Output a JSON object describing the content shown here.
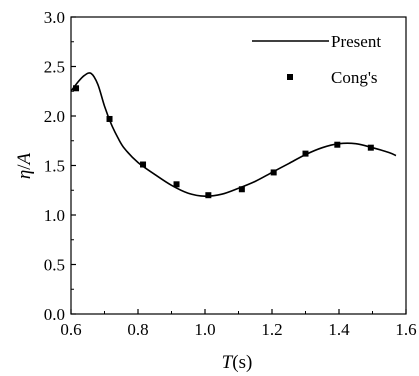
{
  "chart_data": {
    "type": "line",
    "title": "",
    "xlabel": {
      "var": "T",
      "unit": "(s)"
    },
    "ylabel": {
      "var": "η",
      "sep": "/",
      "var2": "A"
    },
    "xlim": [
      0.6,
      1.6
    ],
    "ylim": [
      0.0,
      3.0
    ],
    "xticks": [
      "0.6",
      "0.8",
      "1.0",
      "1.2",
      "1.4",
      "1.6"
    ],
    "yticks": [
      "0.0",
      "0.5",
      "1.0",
      "1.5",
      "2.0",
      "2.5",
      "3.0"
    ],
    "grid": false,
    "legend_position": "top-right",
    "series": [
      {
        "name": "Present",
        "style": "line",
        "color": "#000000",
        "x": [
          0.6,
          0.62,
          0.64,
          0.66,
          0.68,
          0.7,
          0.72,
          0.74,
          0.76,
          0.8,
          0.85,
          0.9,
          0.95,
          1.0,
          1.05,
          1.1,
          1.15,
          1.2,
          1.25,
          1.3,
          1.35,
          1.4,
          1.45,
          1.5,
          1.55,
          1.57
        ],
        "y": [
          2.25,
          2.34,
          2.41,
          2.43,
          2.32,
          2.1,
          1.92,
          1.78,
          1.67,
          1.53,
          1.41,
          1.3,
          1.22,
          1.19,
          1.21,
          1.27,
          1.34,
          1.43,
          1.52,
          1.61,
          1.68,
          1.72,
          1.72,
          1.68,
          1.63,
          1.6
        ]
      },
      {
        "name": "Cong's",
        "style": "marker",
        "marker": "square",
        "color": "#000000",
        "x": [
          0.615,
          0.715,
          0.815,
          0.915,
          1.01,
          1.11,
          1.205,
          1.3,
          1.395,
          1.495
        ],
        "y": [
          2.28,
          1.97,
          1.51,
          1.31,
          1.2,
          1.26,
          1.43,
          1.62,
          1.71,
          1.68
        ]
      }
    ]
  }
}
